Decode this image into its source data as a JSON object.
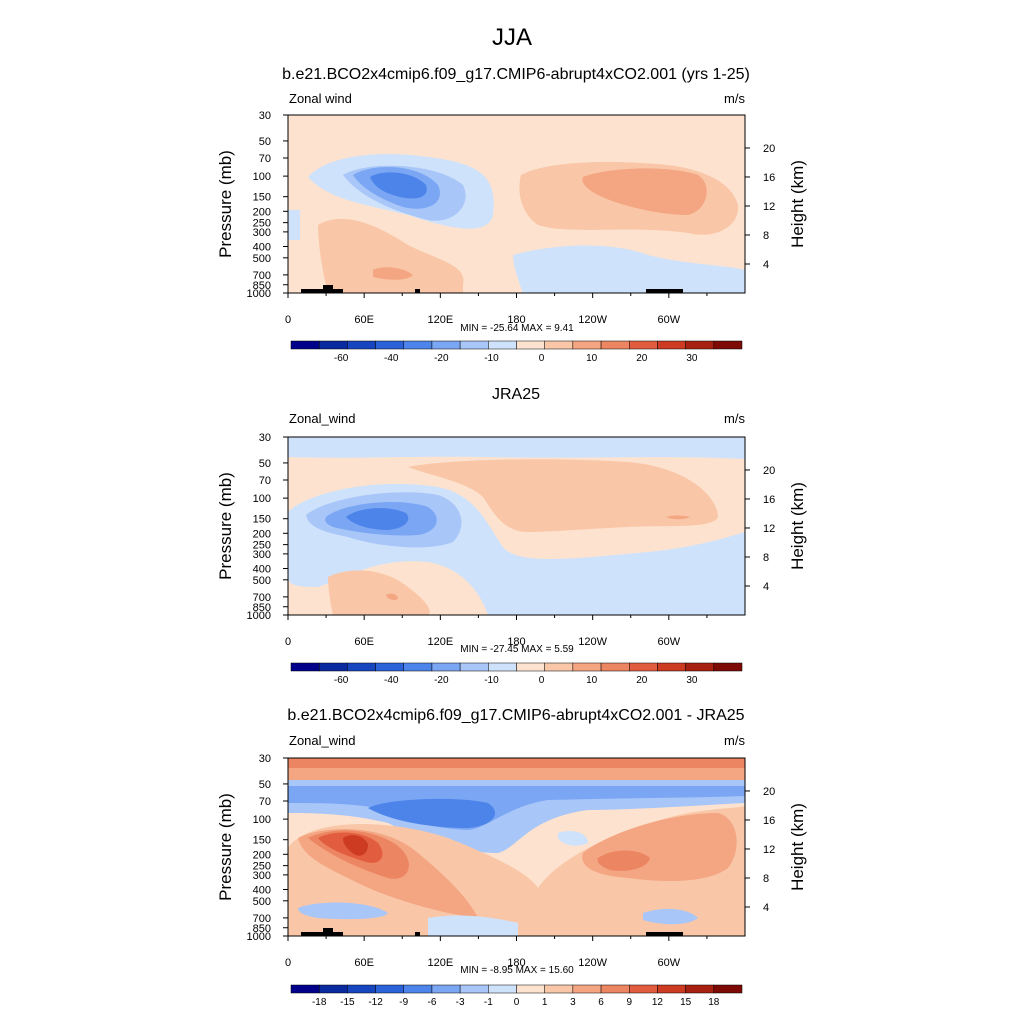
{
  "page_title": "JJA",
  "panels": [
    {
      "title": "b.e21.BCO2x4cmip6.f09_g17.CMIP6-abrupt4xCO2.001 (yrs 1-25)",
      "left_label": "Zonal wind",
      "right_label": "m/s",
      "stats": "MIN = -25.64   MAX =   9.41",
      "colorbar_labels": [
        "-60",
        "-40",
        "-20",
        "-10",
        "0",
        "10",
        "20",
        "30"
      ],
      "colorbar_colors": [
        "#00008b",
        "#0a2aa0",
        "#1546c0",
        "#2b62d8",
        "#4d84ea",
        "#7aa6f4",
        "#a8c6f8",
        "#cfe2fb",
        "#fde3cf",
        "#f9c7a8",
        "#f4a582",
        "#ec8562",
        "#e25d3f",
        "#cc3b22",
        "#a8200f",
        "#7d0a04"
      ],
      "topography": true,
      "chart_data": {
        "type": "heatmap",
        "xlabel": "",
        "x_ticks": [
          "0",
          "60E",
          "120E",
          "180",
          "120W",
          "60W"
        ],
        "ylabel": "Pressure (mb)",
        "y_ticks": [
          "30",
          "50",
          "70",
          "100",
          "150",
          "200",
          "250",
          "300",
          "400",
          "500",
          "700",
          "850",
          "1000"
        ],
        "y2label": "Height (km)",
        "y2_ticks": [
          "20",
          "16",
          "12",
          "8",
          "4"
        ],
        "levels": [
          -60,
          -40,
          -20,
          -10,
          0,
          10,
          20,
          30
        ],
        "min": -25.64,
        "max": 9.41
      }
    },
    {
      "title": "JRA25",
      "left_label": "Zonal_wind",
      "right_label": "m/s",
      "stats": "MIN = -27.45   MAX =   5.59",
      "colorbar_labels": [
        "-60",
        "-40",
        "-20",
        "-10",
        "0",
        "10",
        "20",
        "30"
      ],
      "colorbar_colors": [
        "#00008b",
        "#0a2aa0",
        "#1546c0",
        "#2b62d8",
        "#4d84ea",
        "#7aa6f4",
        "#a8c6f8",
        "#cfe2fb",
        "#fde3cf",
        "#f9c7a8",
        "#f4a582",
        "#ec8562",
        "#e25d3f",
        "#cc3b22",
        "#a8200f",
        "#7d0a04"
      ],
      "topography": false,
      "chart_data": {
        "type": "heatmap",
        "xlabel": "",
        "x_ticks": [
          "0",
          "60E",
          "120E",
          "180",
          "120W",
          "60W"
        ],
        "ylabel": "Pressure (mb)",
        "y_ticks": [
          "30",
          "50",
          "70",
          "100",
          "150",
          "200",
          "250",
          "300",
          "400",
          "500",
          "700",
          "850",
          "1000"
        ],
        "y2label": "Height (km)",
        "y2_ticks": [
          "20",
          "16",
          "12",
          "8",
          "4"
        ],
        "levels": [
          -60,
          -40,
          -20,
          -10,
          0,
          10,
          20,
          30
        ],
        "min": -27.45,
        "max": 5.59
      }
    },
    {
      "title": "b.e21.BCO2x4cmip6.f09_g17.CMIP6-abrupt4xCO2.001 - JRA25",
      "left_label": "Zonal_wind",
      "right_label": "m/s",
      "stats": "MIN = -8.95   MAX =  15.60",
      "colorbar_labels": [
        "-18",
        "-15",
        "-12",
        "-9",
        "-6",
        "-3",
        "-1",
        "0",
        "1",
        "3",
        "6",
        "9",
        "12",
        "15",
        "18"
      ],
      "colorbar_colors": [
        "#00008b",
        "#0a2aa0",
        "#1546c0",
        "#2b62d8",
        "#4d84ea",
        "#7aa6f4",
        "#a8c6f8",
        "#cfe2fb",
        "#fde3cf",
        "#f9c7a8",
        "#f4a582",
        "#ec8562",
        "#e25d3f",
        "#cc3b22",
        "#a8200f",
        "#7d0a04"
      ],
      "topography": true,
      "chart_data": {
        "type": "heatmap",
        "xlabel": "",
        "x_ticks": [
          "0",
          "60E",
          "120E",
          "180",
          "120W",
          "60W"
        ],
        "ylabel": "Pressure (mb)",
        "y_ticks": [
          "30",
          "50",
          "70",
          "100",
          "150",
          "200",
          "250",
          "300",
          "400",
          "500",
          "700",
          "850",
          "1000"
        ],
        "y2label": "Height (km)",
        "y2_ticks": [
          "20",
          "16",
          "12",
          "8",
          "4"
        ],
        "levels": [
          -18,
          -15,
          -12,
          -9,
          -6,
          -3,
          -1,
          0,
          1,
          3,
          6,
          9,
          12,
          15,
          18
        ],
        "min": -8.95,
        "max": 15.6
      }
    }
  ]
}
